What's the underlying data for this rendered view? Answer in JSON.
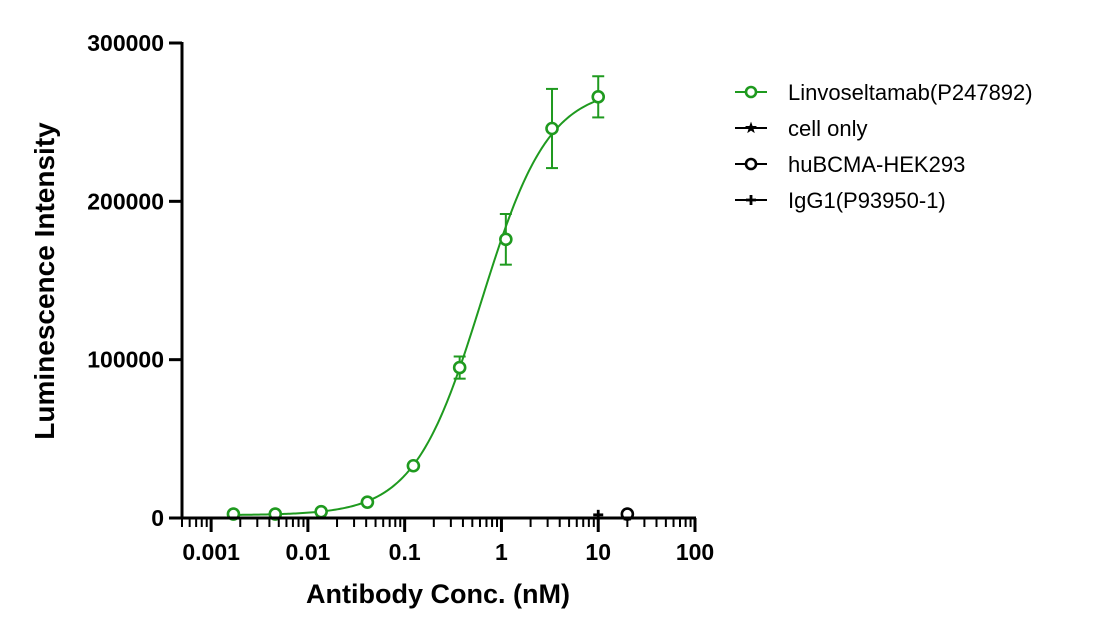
{
  "chart_data": {
    "type": "scatter",
    "xlabel": "Antibody Conc. (nM)",
    "ylabel": "Luminescence Intensity",
    "x_scale": "log",
    "xlim": [
      0.0005,
      100
    ],
    "ylim": [
      0,
      300000
    ],
    "x_tick_labels": [
      "0.001",
      "0.01",
      "0.1",
      "1",
      "10",
      "100"
    ],
    "x_tick_values": [
      0.001,
      0.01,
      0.1,
      1,
      10,
      100
    ],
    "y_tick_labels": [
      "0",
      "100000",
      "200000",
      "300000"
    ],
    "y_tick_values": [
      0,
      100000,
      200000,
      300000
    ],
    "grid": false,
    "legend_position": "right",
    "series": [
      {
        "name": "Linvoseltamab(P247892)",
        "color": "#1f9a1f",
        "marker": "open-circle",
        "x": [
          0.0017,
          0.0046,
          0.0137,
          0.0412,
          0.123,
          0.37,
          1.11,
          3.33,
          10
        ],
        "y": [
          2500,
          2500,
          4000,
          10000,
          33000,
          95000,
          176000,
          246000,
          266000
        ],
        "error": [
          0,
          0,
          0,
          0,
          0,
          7000,
          16000,
          25000,
          13000
        ],
        "fit": "4PL",
        "fit_params": {
          "bottom": 1800,
          "top": 272000,
          "ec50": 0.62,
          "hill": 1.25
        }
      },
      {
        "name": "cell only",
        "color": "#000000",
        "marker": "star",
        "x": [
          20
        ],
        "y": [
          1500
        ]
      },
      {
        "name": "huBCMA-HEK293",
        "color": "#000000",
        "marker": "open-circle",
        "x": [
          20
        ],
        "y": [
          2500
        ]
      },
      {
        "name": "IgG1(P93950-1)",
        "color": "#000000",
        "marker": "plus",
        "x": [
          10
        ],
        "y": [
          2000
        ]
      }
    ]
  }
}
